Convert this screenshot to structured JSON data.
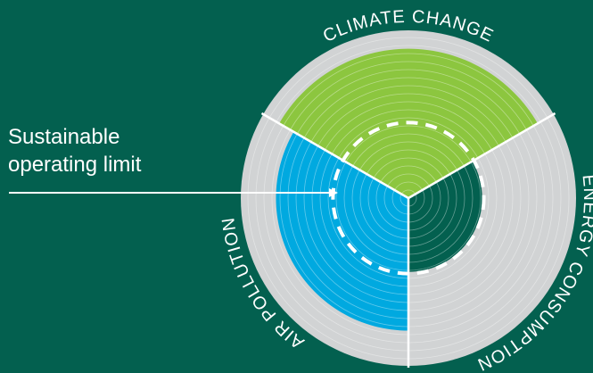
{
  "limit_label": {
    "line1": "Sustainable",
    "line2": "operating limit"
  },
  "sectors": [
    {
      "name": "CLIMATE CHANGE",
      "level": 0.89,
      "color": "#8cc63f"
    },
    {
      "name": "ENERGY CONSUMPTION",
      "level": 0.44,
      "color": "#03604f"
    },
    {
      "name": "AIR POLLUTION",
      "level": 0.79,
      "color": "#00a9e0"
    }
  ],
  "safe_limit_level": 0.45,
  "colors": {
    "background": "#03604f",
    "outer_track": "#d1d3d4",
    "boundary": "#ffffff"
  }
}
